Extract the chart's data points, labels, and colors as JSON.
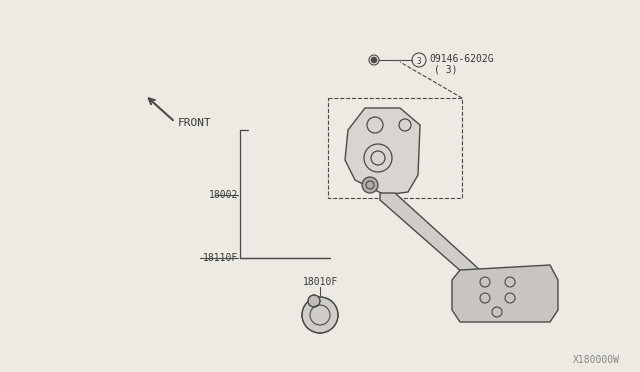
{
  "bg_color": "#ede9e3",
  "line_color": "#4a4a4a",
  "text_color": "#3a3a3a",
  "watermark": "X180000W",
  "front_label": "FRONT",
  "label_18002": "18002",
  "label_18110F": "18110F",
  "label_18010F": "18010F",
  "label_bolt": "09146-6202G",
  "label_bolt2": "( 3)"
}
